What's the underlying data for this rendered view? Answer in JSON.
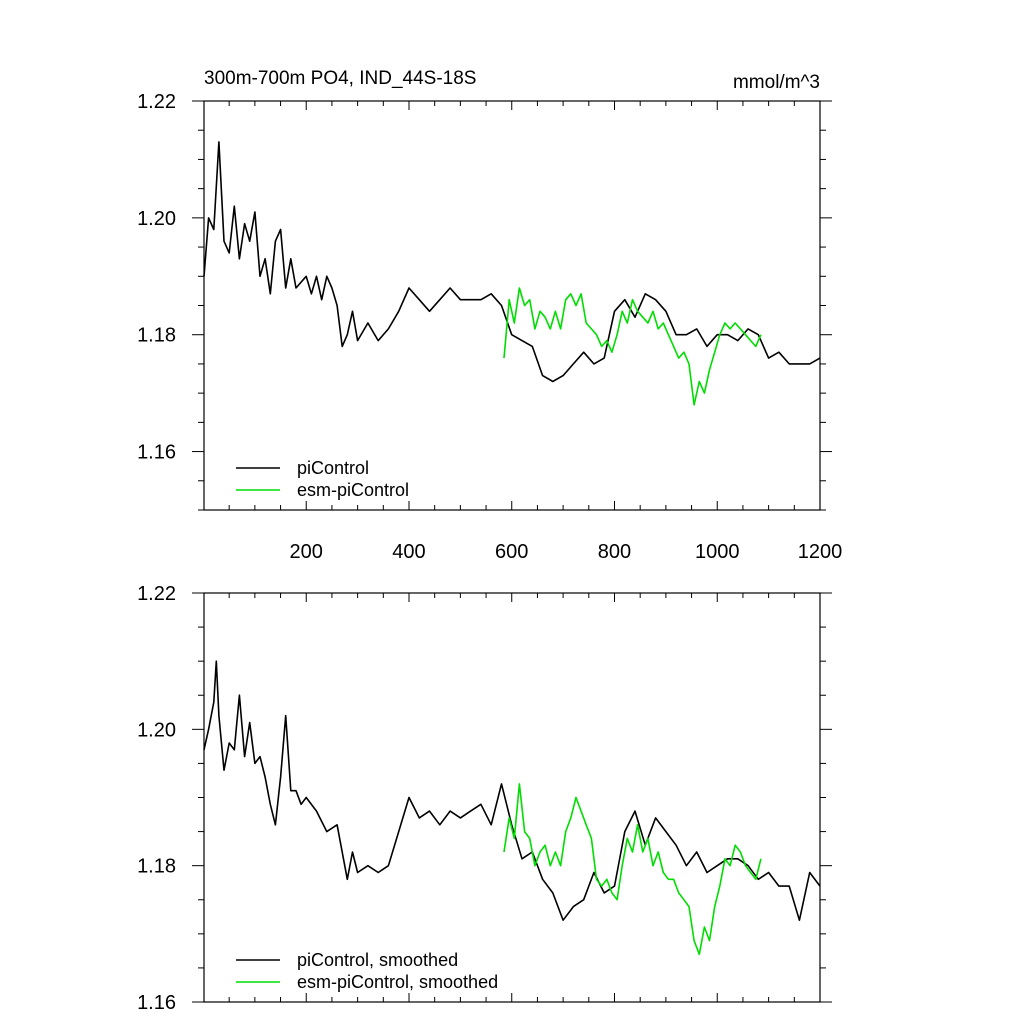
{
  "chart_data": [
    {
      "type": "line",
      "title_left": "300m-700m PO4, IND_44S-18S",
      "title_right": "mmol/m^3",
      "xlim": [
        1,
        1200
      ],
      "ylim": [
        1.15,
        1.22
      ],
      "x_ticks": [
        200,
        400,
        600,
        800,
        1000,
        1200
      ],
      "x_tick_labels": [
        "200",
        "400",
        "600",
        "800",
        "1000",
        "1200"
      ],
      "y_ticks": [
        1.16,
        1.18,
        1.2,
        1.22
      ],
      "y_tick_labels": [
        "1.16",
        "1.18",
        "1.20",
        "1.22"
      ],
      "legend_position": "bottom-left",
      "series": [
        {
          "name": "piControl",
          "color": "#000000",
          "x": [
            1,
            10,
            20,
            30,
            40,
            50,
            60,
            70,
            80,
            90,
            100,
            110,
            120,
            130,
            140,
            150,
            160,
            170,
            180,
            190,
            200,
            210,
            220,
            230,
            240,
            250,
            260,
            270,
            280,
            290,
            300,
            320,
            340,
            360,
            380,
            400,
            420,
            440,
            460,
            480,
            500,
            520,
            540,
            560,
            580,
            600,
            620,
            640,
            660,
            680,
            700,
            720,
            740,
            760,
            780,
            800,
            820,
            840,
            860,
            880,
            900,
            920,
            940,
            960,
            980,
            1000,
            1020,
            1040,
            1060,
            1080,
            1100,
            1120,
            1140,
            1160,
            1180,
            1200
          ],
          "values": [
            1.19,
            1.2,
            1.198,
            1.213,
            1.196,
            1.194,
            1.202,
            1.193,
            1.199,
            1.196,
            1.201,
            1.19,
            1.193,
            1.187,
            1.196,
            1.198,
            1.188,
            1.193,
            1.188,
            1.189,
            1.19,
            1.187,
            1.19,
            1.186,
            1.19,
            1.188,
            1.185,
            1.178,
            1.18,
            1.184,
            1.179,
            1.182,
            1.179,
            1.181,
            1.184,
            1.188,
            1.186,
            1.184,
            1.186,
            1.188,
            1.186,
            1.186,
            1.186,
            1.187,
            1.185,
            1.18,
            1.179,
            1.178,
            1.173,
            1.172,
            1.173,
            1.175,
            1.177,
            1.175,
            1.176,
            1.184,
            1.186,
            1.183,
            1.187,
            1.186,
            1.184,
            1.18,
            1.18,
            1.181,
            1.178,
            1.18,
            1.18,
            1.179,
            1.181,
            1.18,
            1.176,
            1.177,
            1.175,
            1.175,
            1.175,
            1.176
          ]
        },
        {
          "name": "esm-piControl",
          "color": "#00dd00",
          "x": [
            585,
            595,
            605,
            615,
            625,
            635,
            645,
            655,
            665,
            675,
            685,
            695,
            705,
            715,
            725,
            735,
            745,
            755,
            765,
            775,
            785,
            795,
            805,
            815,
            825,
            835,
            845,
            855,
            865,
            875,
            885,
            895,
            905,
            915,
            925,
            935,
            945,
            955,
            965,
            975,
            985,
            995,
            1005,
            1015,
            1025,
            1035,
            1045,
            1055,
            1065,
            1075,
            1085
          ],
          "values": [
            1.176,
            1.186,
            1.182,
            1.188,
            1.185,
            1.186,
            1.181,
            1.184,
            1.183,
            1.181,
            1.184,
            1.181,
            1.186,
            1.187,
            1.185,
            1.187,
            1.182,
            1.181,
            1.18,
            1.178,
            1.179,
            1.177,
            1.18,
            1.184,
            1.182,
            1.186,
            1.184,
            1.183,
            1.182,
            1.184,
            1.181,
            1.182,
            1.18,
            1.178,
            1.176,
            1.177,
            1.175,
            1.168,
            1.172,
            1.17,
            1.174,
            1.177,
            1.18,
            1.182,
            1.181,
            1.182,
            1.181,
            1.18,
            1.179,
            1.178,
            1.18
          ]
        }
      ]
    },
    {
      "type": "line",
      "xlim": [
        1,
        1200
      ],
      "ylim": [
        1.16,
        1.22
      ],
      "x_ticks": [
        200,
        400,
        600,
        800,
        1000,
        1200
      ],
      "y_ticks": [
        1.16,
        1.18,
        1.2,
        1.22
      ],
      "y_tick_labels": [
        "1.16",
        "1.18",
        "1.20",
        "1.22"
      ],
      "legend_position": "bottom-left",
      "series": [
        {
          "name": "piControl, smoothed",
          "color": "#000000",
          "x": [
            1,
            10,
            20,
            25,
            30,
            40,
            50,
            60,
            70,
            80,
            90,
            100,
            110,
            120,
            130,
            140,
            150,
            160,
            170,
            180,
            190,
            200,
            220,
            240,
            260,
            280,
            290,
            300,
            320,
            340,
            360,
            380,
            400,
            420,
            440,
            460,
            480,
            500,
            520,
            540,
            560,
            580,
            600,
            620,
            640,
            660,
            680,
            700,
            720,
            740,
            760,
            780,
            800,
            820,
            840,
            860,
            880,
            900,
            920,
            940,
            960,
            980,
            1000,
            1020,
            1040,
            1060,
            1080,
            1100,
            1120,
            1140,
            1160,
            1180,
            1200
          ],
          "values": [
            1.197,
            1.2,
            1.204,
            1.21,
            1.202,
            1.194,
            1.198,
            1.197,
            1.205,
            1.196,
            1.201,
            1.195,
            1.196,
            1.193,
            1.189,
            1.186,
            1.193,
            1.202,
            1.191,
            1.191,
            1.189,
            1.19,
            1.188,
            1.185,
            1.186,
            1.178,
            1.182,
            1.179,
            1.18,
            1.179,
            1.18,
            1.185,
            1.19,
            1.187,
            1.188,
            1.186,
            1.188,
            1.187,
            1.188,
            1.189,
            1.186,
            1.192,
            1.186,
            1.181,
            1.182,
            1.178,
            1.176,
            1.172,
            1.174,
            1.175,
            1.179,
            1.176,
            1.177,
            1.185,
            1.188,
            1.183,
            1.187,
            1.185,
            1.183,
            1.18,
            1.182,
            1.179,
            1.18,
            1.181,
            1.181,
            1.18,
            1.178,
            1.179,
            1.177,
            1.177,
            1.172,
            1.179,
            1.177
          ]
        },
        {
          "name": "esm-piControl, smoothed",
          "color": "#00dd00",
          "x": [
            585,
            595,
            605,
            615,
            625,
            635,
            645,
            655,
            665,
            675,
            685,
            695,
            705,
            715,
            725,
            735,
            745,
            755,
            765,
            775,
            785,
            795,
            805,
            815,
            825,
            835,
            845,
            855,
            865,
            875,
            885,
            895,
            905,
            915,
            925,
            935,
            945,
            955,
            965,
            975,
            985,
            995,
            1005,
            1015,
            1025,
            1035,
            1045,
            1055,
            1065,
            1075,
            1085
          ],
          "values": [
            1.182,
            1.187,
            1.184,
            1.192,
            1.185,
            1.184,
            1.18,
            1.182,
            1.183,
            1.18,
            1.182,
            1.18,
            1.185,
            1.187,
            1.19,
            1.188,
            1.186,
            1.184,
            1.178,
            1.177,
            1.178,
            1.176,
            1.175,
            1.18,
            1.184,
            1.182,
            1.186,
            1.182,
            1.184,
            1.18,
            1.182,
            1.179,
            1.178,
            1.178,
            1.176,
            1.175,
            1.174,
            1.169,
            1.167,
            1.171,
            1.169,
            1.174,
            1.177,
            1.181,
            1.18,
            1.183,
            1.182,
            1.18,
            1.179,
            1.178,
            1.181
          ]
        }
      ]
    }
  ]
}
